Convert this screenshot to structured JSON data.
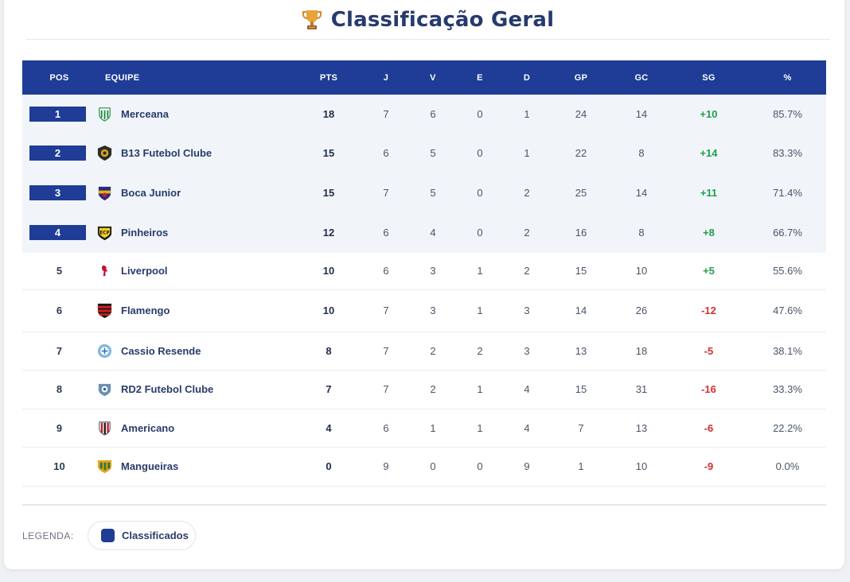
{
  "page": {
    "title": "Classificação Geral"
  },
  "colors": {
    "accent": "#1f3c96",
    "positive": "#1f9e4b",
    "negative": "#d32f2f"
  },
  "table": {
    "headers": {
      "pos": "POS",
      "team": "EQUIPE",
      "pts": "PTS",
      "j": "J",
      "v": "V",
      "e": "E",
      "d": "D",
      "gp": "GP",
      "gc": "GC",
      "sg": "SG",
      "pct": "%"
    },
    "rows": [
      {
        "pos": "1",
        "team": "Merceana",
        "logo": "merceana-crest",
        "pts": "18",
        "j": "7",
        "v": "6",
        "e": "0",
        "d": "1",
        "gp": "24",
        "gc": "14",
        "sg": "+10",
        "pct": "85.7%",
        "qualified": true
      },
      {
        "pos": "2",
        "team": "B13 Futebol Clube",
        "logo": "b13-crest",
        "pts": "15",
        "j": "6",
        "v": "5",
        "e": "0",
        "d": "1",
        "gp": "22",
        "gc": "8",
        "sg": "+14",
        "pct": "83.3%",
        "qualified": true
      },
      {
        "pos": "3",
        "team": "Boca Junior",
        "logo": "boca-crest",
        "pts": "15",
        "j": "7",
        "v": "5",
        "e": "0",
        "d": "2",
        "gp": "25",
        "gc": "14",
        "sg": "+11",
        "pct": "71.4%",
        "qualified": true
      },
      {
        "pos": "4",
        "team": "Pinheiros",
        "logo": "pinheiros-crest",
        "pts": "12",
        "j": "6",
        "v": "4",
        "e": "0",
        "d": "2",
        "gp": "16",
        "gc": "8",
        "sg": "+8",
        "pct": "66.7%",
        "qualified": true
      },
      {
        "pos": "5",
        "team": "Liverpool",
        "logo": "liverpool-crest",
        "pts": "10",
        "j": "6",
        "v": "3",
        "e": "1",
        "d": "2",
        "gp": "15",
        "gc": "10",
        "sg": "+5",
        "pct": "55.6%",
        "qualified": false
      },
      {
        "pos": "6",
        "team": "Flamengo",
        "logo": "flamengo-crest",
        "pts": "10",
        "j": "7",
        "v": "3",
        "e": "1",
        "d": "3",
        "gp": "14",
        "gc": "26",
        "sg": "-12",
        "pct": "47.6%",
        "qualified": false
      },
      {
        "pos": "7",
        "team": "Cassio Resende",
        "logo": "cassio-crest",
        "pts": "8",
        "j": "7",
        "v": "2",
        "e": "2",
        "d": "3",
        "gp": "13",
        "gc": "18",
        "sg": "-5",
        "pct": "38.1%",
        "qualified": false
      },
      {
        "pos": "8",
        "team": "RD2 Futebol Clube",
        "logo": "rd2-crest",
        "pts": "7",
        "j": "7",
        "v": "2",
        "e": "1",
        "d": "4",
        "gp": "15",
        "gc": "31",
        "sg": "-16",
        "pct": "33.3%",
        "qualified": false
      },
      {
        "pos": "9",
        "team": "Americano",
        "logo": "americano-crest",
        "pts": "4",
        "j": "6",
        "v": "1",
        "e": "1",
        "d": "4",
        "gp": "7",
        "gc": "13",
        "sg": "-6",
        "pct": "22.2%",
        "qualified": false
      },
      {
        "pos": "10",
        "team": "Mangueiras",
        "logo": "mangueiras-crest",
        "pts": "0",
        "j": "9",
        "v": "0",
        "e": "0",
        "d": "9",
        "gp": "1",
        "gc": "10",
        "sg": "-9",
        "pct": "0.0%",
        "qualified": false
      }
    ]
  },
  "legend": {
    "label": "LEGENDA:",
    "items": [
      {
        "label": "Classificados"
      }
    ]
  }
}
